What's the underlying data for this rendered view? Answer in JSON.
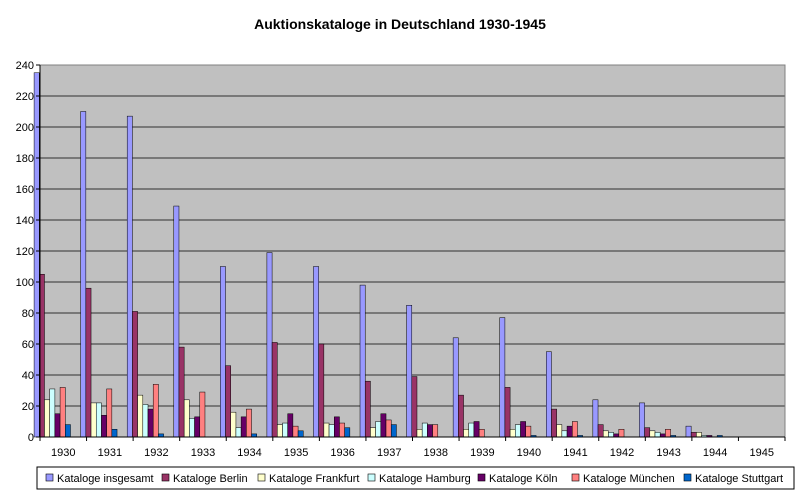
{
  "chart_data": {
    "type": "bar",
    "title": "Auktionskataloge in Deutschland 1930-1945",
    "xlabel": "",
    "ylabel": "",
    "ylim": [
      0,
      240
    ],
    "yticks": [
      0,
      20,
      40,
      60,
      80,
      100,
      120,
      140,
      160,
      180,
      200,
      220,
      240
    ],
    "grid": true,
    "legend_position": "bottom",
    "categories": [
      "1930",
      "1931",
      "1932",
      "1933",
      "1934",
      "1935",
      "1936",
      "1937",
      "1938",
      "1939",
      "1940",
      "1941",
      "1942",
      "1943",
      "1944",
      "1945"
    ],
    "series": [
      {
        "name": "Kataloge insgesamt",
        "color": "#9999ff",
        "values": [
          235,
          210,
          207,
          149,
          110,
          119,
          110,
          98,
          85,
          64,
          77,
          55,
          24,
          22,
          7,
          0
        ]
      },
      {
        "name": "Kataloge Berlin",
        "color": "#993366",
        "values": [
          105,
          96,
          81,
          58,
          46,
          61,
          60,
          36,
          39,
          27,
          32,
          18,
          8,
          6,
          3,
          0
        ]
      },
      {
        "name": "Kataloge Frankfurt",
        "color": "#ffffcc",
        "values": [
          24,
          22,
          27,
          24,
          16,
          8,
          9,
          6,
          5,
          5,
          5,
          8,
          4,
          4,
          3,
          0
        ]
      },
      {
        "name": "Kataloge Hamburg",
        "color": "#ccffff",
        "values": [
          31,
          22,
          21,
          12,
          6,
          9,
          8,
          10,
          9,
          9,
          8,
          4,
          3,
          3,
          1,
          0
        ]
      },
      {
        "name": "Kataloge Köln",
        "color": "#660066",
        "values": [
          15,
          14,
          18,
          13,
          13,
          15,
          13,
          15,
          8,
          10,
          10,
          7,
          2,
          2,
          1,
          0
        ]
      },
      {
        "name": "Kataloge München",
        "color": "#ff8080",
        "values": [
          32,
          31,
          34,
          29,
          18,
          7,
          9,
          11,
          8,
          5,
          7,
          10,
          5,
          5,
          0,
          0
        ]
      },
      {
        "name": "Kataloge Stuttgart",
        "color": "#0066cc",
        "values": [
          8,
          5,
          2,
          0,
          2,
          4,
          6,
          8,
          0,
          0,
          1,
          1,
          0,
          1,
          1,
          0
        ]
      }
    ]
  }
}
